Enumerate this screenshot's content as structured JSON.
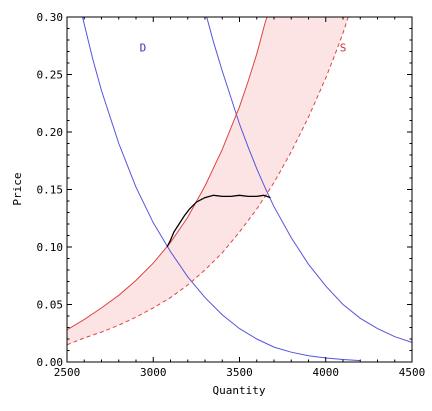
{
  "chart_data": {
    "type": "line",
    "title": "",
    "xlabel": "Quantity",
    "ylabel": "Price",
    "xlim": [
      2500,
      4500
    ],
    "ylim": [
      0,
      0.3
    ],
    "x_ticks": [
      "2500",
      "3000",
      "3500",
      "4000",
      "4500"
    ],
    "y_ticks": [
      "0.00",
      "0.05",
      "0.10",
      "0.15",
      "0.20",
      "0.25",
      "0.30"
    ],
    "grid": false,
    "colors": {
      "demand": "#5555dd",
      "supply": "#dd4444",
      "band_fill": "#fde4e4",
      "path": "#000000"
    },
    "band": {
      "name": "",
      "upper": "S-upper",
      "lower": "S-lower"
    },
    "series": [
      {
        "key": "D-left",
        "label": "D",
        "style": "solid",
        "color": "#5555dd",
        "points": [
          [
            2590,
            0.3
          ],
          [
            2650,
            0.263
          ],
          [
            2700,
            0.236
          ],
          [
            2800,
            0.19
          ],
          [
            2900,
            0.152
          ],
          [
            3000,
            0.121
          ],
          [
            3100,
            0.096
          ],
          [
            3200,
            0.074
          ],
          [
            3300,
            0.056
          ],
          [
            3400,
            0.041
          ],
          [
            3500,
            0.029
          ],
          [
            3600,
            0.02
          ],
          [
            3700,
            0.013
          ],
          [
            3800,
            0.0085
          ],
          [
            3900,
            0.0055
          ],
          [
            4000,
            0.0035
          ],
          [
            4100,
            0.0022
          ],
          [
            4200,
            0.0012
          ]
        ]
      },
      {
        "key": "D-right",
        "label": "",
        "style": "solid",
        "color": "#5555dd",
        "points": [
          [
            3310,
            0.3
          ],
          [
            3350,
            0.278
          ],
          [
            3400,
            0.253
          ],
          [
            3450,
            0.23
          ],
          [
            3500,
            0.207
          ],
          [
            3550,
            0.187
          ],
          [
            3600,
            0.168
          ],
          [
            3650,
            0.151
          ],
          [
            3700,
            0.135
          ],
          [
            3800,
            0.108
          ],
          [
            3900,
            0.085
          ],
          [
            4000,
            0.066
          ],
          [
            4100,
            0.05
          ],
          [
            4200,
            0.038
          ],
          [
            4300,
            0.029
          ],
          [
            4400,
            0.022
          ],
          [
            4500,
            0.017
          ]
        ]
      },
      {
        "key": "S-upper",
        "label": "S",
        "style": "solid",
        "color": "#dd4444",
        "points": [
          [
            2500,
            0.028
          ],
          [
            2600,
            0.037
          ],
          [
            2700,
            0.047
          ],
          [
            2800,
            0.058
          ],
          [
            2900,
            0.071
          ],
          [
            3000,
            0.086
          ],
          [
            3100,
            0.104
          ],
          [
            3200,
            0.126
          ],
          [
            3300,
            0.153
          ],
          [
            3400,
            0.185
          ],
          [
            3500,
            0.222
          ],
          [
            3550,
            0.244
          ],
          [
            3600,
            0.268
          ],
          [
            3650,
            0.296
          ],
          [
            3660,
            0.3
          ]
        ]
      },
      {
        "key": "S-lower",
        "label": "",
        "style": "dashed",
        "color": "#dd4444",
        "points": [
          [
            2500,
            0.015
          ],
          [
            2600,
            0.021
          ],
          [
            2700,
            0.026
          ],
          [
            2800,
            0.032
          ],
          [
            2900,
            0.039
          ],
          [
            3000,
            0.047
          ],
          [
            3100,
            0.056
          ],
          [
            3200,
            0.067
          ],
          [
            3300,
            0.08
          ],
          [
            3400,
            0.095
          ],
          [
            3500,
            0.113
          ],
          [
            3600,
            0.133
          ],
          [
            3700,
            0.156
          ],
          [
            3800,
            0.183
          ],
          [
            3900,
            0.213
          ],
          [
            4000,
            0.247
          ],
          [
            4050,
            0.266
          ],
          [
            4100,
            0.286
          ],
          [
            4130,
            0.3
          ]
        ]
      },
      {
        "key": "path",
        "label": "",
        "style": "solid",
        "color": "#000000",
        "points": [
          [
            3080,
            0.1
          ],
          [
            3100,
            0.106
          ],
          [
            3120,
            0.113
          ],
          [
            3150,
            0.12
          ],
          [
            3180,
            0.127
          ],
          [
            3210,
            0.133
          ],
          [
            3250,
            0.139
          ],
          [
            3300,
            0.143
          ],
          [
            3350,
            0.145
          ],
          [
            3400,
            0.144
          ],
          [
            3450,
            0.144
          ],
          [
            3500,
            0.145
          ],
          [
            3550,
            0.144
          ],
          [
            3600,
            0.144
          ],
          [
            3640,
            0.145
          ],
          [
            3680,
            0.143
          ]
        ]
      }
    ],
    "labels": [
      {
        "text": "D",
        "x": 2940,
        "y": 0.27,
        "color": "#3333bb"
      },
      {
        "text": "S",
        "x": 4100,
        "y": 0.27,
        "color": "#cc3333"
      }
    ]
  }
}
